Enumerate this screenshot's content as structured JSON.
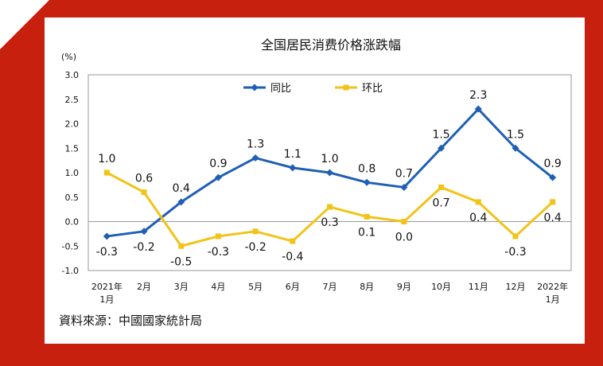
{
  "chart_data": {
    "type": "line",
    "title": "全国居民消费价格涨跌幅",
    "ylabel": "(%)",
    "ylim": [
      -1.0,
      3.0
    ],
    "yticks": [
      "3.0",
      "2.5",
      "2.0",
      "1.5",
      "1.0",
      "0.5",
      "0.0",
      "-0.5",
      "-1.0"
    ],
    "categories": [
      [
        "2021年",
        "1月"
      ],
      [
        "2月"
      ],
      [
        "3月"
      ],
      [
        "4月"
      ],
      [
        "5月"
      ],
      [
        "6月"
      ],
      [
        "7月"
      ],
      [
        "8月"
      ],
      [
        "9月"
      ],
      [
        "10月"
      ],
      [
        "11月"
      ],
      [
        "12月"
      ],
      [
        "2022年",
        "1月"
      ]
    ],
    "legend_position": "top-center",
    "series": [
      {
        "name": "同比",
        "color": "#1f5fb4",
        "marker": "diamond",
        "values": [
          -0.3,
          -0.2,
          0.4,
          0.9,
          1.3,
          1.1,
          1.0,
          0.8,
          0.7,
          1.5,
          2.3,
          1.5,
          0.9
        ],
        "labels": [
          "-0.3",
          "-0.2",
          "0.4",
          "0.9",
          "1.3",
          "1.1",
          "1.0",
          "0.8",
          "0.7",
          "1.5",
          "2.3",
          "1.5",
          "0.9"
        ]
      },
      {
        "name": "环比",
        "color": "#f2c318",
        "marker": "square",
        "values": [
          1.0,
          0.6,
          -0.5,
          -0.3,
          -0.2,
          -0.4,
          0.3,
          0.1,
          0.0,
          0.7,
          0.4,
          -0.3,
          0.4
        ],
        "labels": [
          "1.0",
          "0.6",
          "-0.5",
          "-0.3",
          "-0.2",
          "-0.4",
          "0.3",
          "0.1",
          "0.0",
          "0.7",
          "0.4",
          "-0.3",
          "0.4"
        ]
      }
    ]
  },
  "source": "資料來源：中國國家統計局"
}
